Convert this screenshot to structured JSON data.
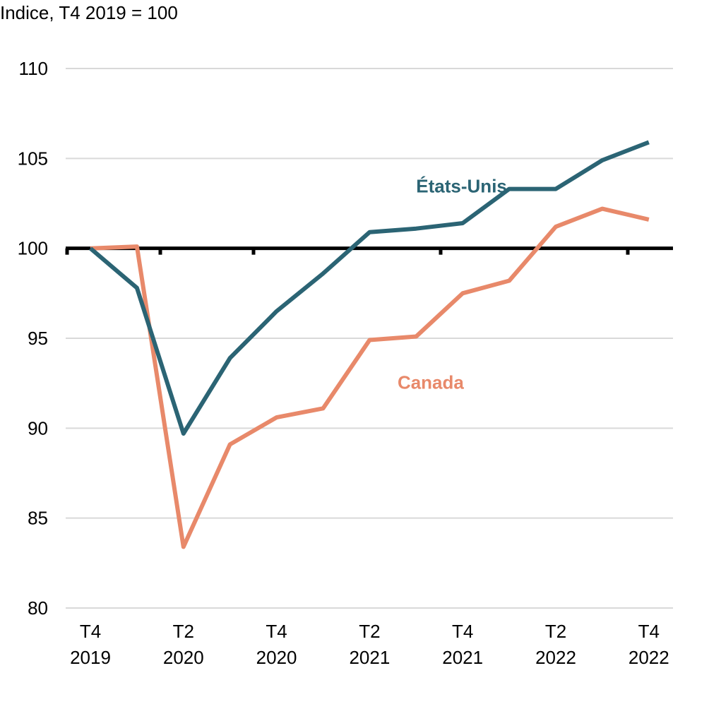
{
  "chart_data": {
    "type": "line",
    "ylabel": "Indice, T4 2019 = 100",
    "ylim": [
      80,
      110
    ],
    "yticks": [
      80,
      85,
      90,
      95,
      100,
      105,
      110
    ],
    "grid": true,
    "baseline": 100,
    "x": [
      "T4 2019",
      "T1 2020",
      "T2 2020",
      "T3 2020",
      "T4 2020",
      "T1 2021",
      "T2 2021",
      "T3 2021",
      "T4 2021",
      "T1 2022",
      "T2 2022",
      "T3 2022",
      "T4 2022"
    ],
    "xtick_labels": [
      {
        "index": 0,
        "line1": "T4",
        "line2": "2019"
      },
      {
        "index": 2,
        "line1": "T2",
        "line2": "2020"
      },
      {
        "index": 4,
        "line1": "T4",
        "line2": "2020"
      },
      {
        "index": 6,
        "line1": "T2",
        "line2": "2021"
      },
      {
        "index": 8,
        "line1": "T4",
        "line2": "2021"
      },
      {
        "index": 10,
        "line1": "T2",
        "line2": "2022"
      },
      {
        "index": 12,
        "line1": "T4",
        "line2": "2022"
      }
    ],
    "series": [
      {
        "name": "États-Unis",
        "color": "#2b6474",
        "label_anchor_index": 7,
        "label_anchor_value": 103.1,
        "values": [
          100.0,
          97.8,
          89.7,
          93.9,
          96.5,
          98.6,
          100.9,
          101.1,
          101.4,
          103.3,
          103.3,
          104.9,
          105.9
        ]
      },
      {
        "name": "Canada",
        "color": "#e8896a",
        "label_anchor_index": 6.6,
        "label_anchor_value": 92.2,
        "values": [
          100.0,
          100.1,
          83.4,
          89.1,
          90.6,
          91.1,
          94.9,
          95.1,
          97.5,
          98.2,
          101.2,
          102.2,
          101.6
        ]
      }
    ]
  }
}
